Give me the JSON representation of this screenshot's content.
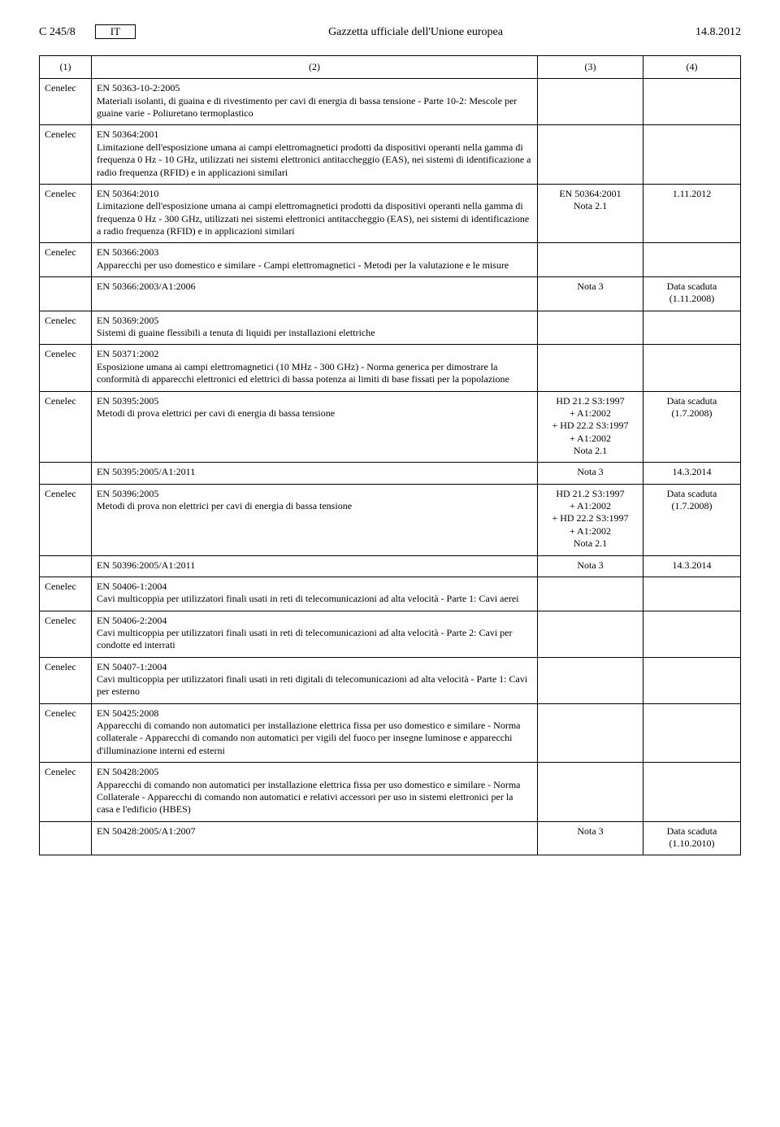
{
  "header": {
    "page_ref": "C 245/8",
    "lang": "IT",
    "journal": "Gazzetta ufficiale dell'Unione europea",
    "date": "14.8.2012"
  },
  "columns": {
    "c1": "(1)",
    "c2": "(2)",
    "c3": "(3)",
    "c4": "(4)"
  },
  "rows": [
    {
      "org": "Cenelec",
      "code": "EN 50363-10-2:2005",
      "desc": "Materiali isolanti, di guaina e di rivestimento per cavi di energia di bassa tensione - Parte 10-2: Mescole per guaine varie - Poliuretano termoplastico",
      "c3": "",
      "c4": ""
    },
    {
      "org": "Cenelec",
      "code": "EN 50364:2001",
      "desc": "Limitazione dell'esposizione umana ai campi elettromagnetici prodotti da dispositivi operanti nella gamma di frequenza 0 Hz - 10 GHz, utilizzati nei sistemi elettronici antitaccheggio (EAS), nei sistemi di identificazione a radio frequenza (RFID) e in applicazioni similari",
      "c3": "",
      "c4": ""
    },
    {
      "org": "Cenelec",
      "code": "EN 50364:2010",
      "desc": "Limitazione dell'esposizione umana ai campi elettromagnetici prodotti da dispositivi operanti nella gamma di frequenza 0 Hz - 300 GHz, utilizzati nei sistemi elettronici antitaccheggio (EAS), nei sistemi di identificazione a radio frequenza (RFID) e in applicazioni similari",
      "c3": "EN 50364:2001\nNota 2.1",
      "c4": "1.11.2012"
    },
    {
      "org": "Cenelec",
      "code": "EN 50366:2003",
      "desc": "Apparecchi per uso domestico e similare - Campi elettromagnetici - Metodi per la valutazione e le misure",
      "c3": "",
      "c4": ""
    },
    {
      "sub": true,
      "code": "EN 50366:2003/A1:2006",
      "c3": "Nota 3",
      "c4": "Data scaduta\n(1.11.2008)"
    },
    {
      "org": "Cenelec",
      "code": "EN 50369:2005",
      "desc": "Sistemi di guaine flessibili a tenuta di liquidi per installazioni elettriche",
      "c3": "",
      "c4": ""
    },
    {
      "org": "Cenelec",
      "code": "EN 50371:2002",
      "desc": "Esposizione umana ai campi elettromagnetici (10 MHz - 300 GHz) - Norma generica per dimostrare la conformità di apparecchi elettronici ed elettrici di bassa potenza ai limiti di base fissati per la popolazione",
      "c3": "",
      "c4": ""
    },
    {
      "org": "Cenelec",
      "code": "EN 50395:2005",
      "desc": "Metodi di prova elettrici per cavi di energia di bassa tensione",
      "c3": "HD 21.2 S3:1997\n+ A1:2002\n+ HD 22.2 S3:1997\n+ A1:2002\nNota 2.1",
      "c4": "Data scaduta\n(1.7.2008)"
    },
    {
      "sub": true,
      "code": "EN 50395:2005/A1:2011",
      "c3": "Nota 3",
      "c4": "14.3.2014"
    },
    {
      "org": "Cenelec",
      "code": "EN 50396:2005",
      "desc": "Metodi di prova non elettrici per cavi di energia di bassa tensione",
      "c3": "HD 21.2 S3:1997\n+ A1:2002\n+ HD 22.2 S3:1997\n+ A1:2002\nNota 2.1",
      "c4": "Data scaduta\n(1.7.2008)"
    },
    {
      "sub": true,
      "code": "EN 50396:2005/A1:2011",
      "c3": "Nota 3",
      "c4": "14.3.2014"
    },
    {
      "org": "Cenelec",
      "code": "EN 50406-1:2004",
      "desc": "Cavi multicoppia per utilizzatori finali usati in reti di telecomunicazioni ad alta velocità - Parte 1: Cavi aerei",
      "c3": "",
      "c4": ""
    },
    {
      "org": "Cenelec",
      "code": "EN 50406-2:2004",
      "desc": "Cavi multicoppia per utilizzatori finali usati in reti di telecomunicazioni ad alta velocità - Parte 2: Cavi per condotte ed interrati",
      "c3": "",
      "c4": ""
    },
    {
      "org": "Cenelec",
      "code": "EN 50407-1:2004",
      "desc": "Cavi multicoppia per utilizzatori finali usati in reti digitali di telecomunicazioni ad alta velocità - Parte 1: Cavi per esterno",
      "c3": "",
      "c4": ""
    },
    {
      "org": "Cenelec",
      "code": "EN 50425:2008",
      "desc": "Apparecchi di comando non automatici per installazione elettrica fissa per uso domestico e similare - Norma collaterale - Apparecchi di comando non automatici per vigili del fuoco per insegne luminose e apparecchi d'illuminazione interni ed esterni",
      "c3": "",
      "c4": ""
    },
    {
      "org": "Cenelec",
      "code": "EN 50428:2005",
      "desc": "Apparecchi di comando non automatici per installazione elettrica fissa per uso domestico e similare - Norma Collaterale - Apparecchi di comando non automatici e relativi accessori per uso in sistemi elettronici per la casa e l'edificio (HBES)",
      "c3": "",
      "c4": ""
    },
    {
      "sub": true,
      "code": "EN 50428:2005/A1:2007",
      "c3": "Nota 3",
      "c4": "Data scaduta\n(1.10.2010)"
    }
  ]
}
